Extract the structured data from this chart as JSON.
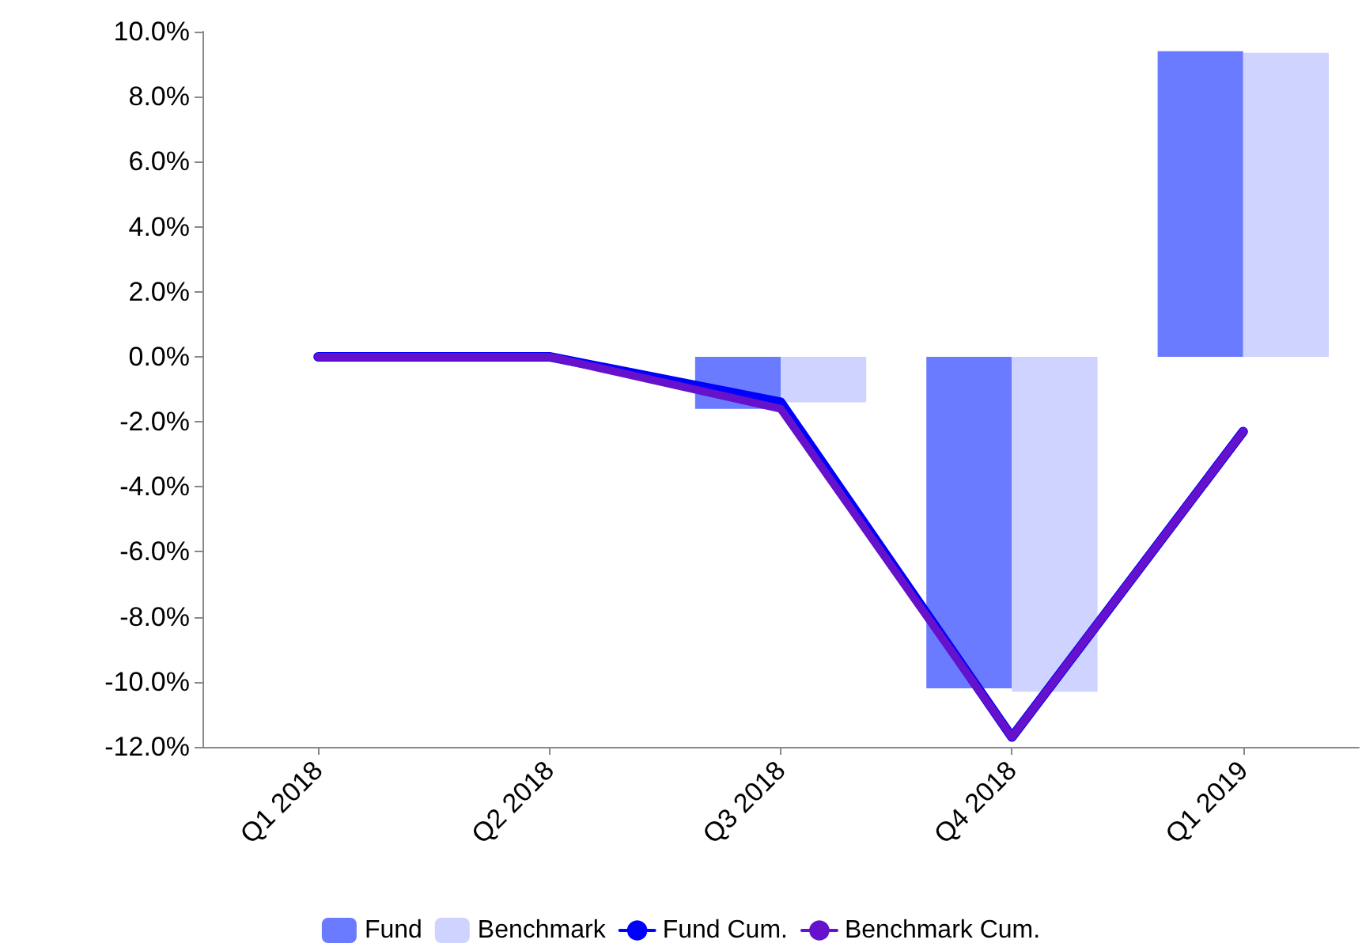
{
  "chart_data": {
    "type": "bar",
    "categories": [
      "Q1 2018",
      "Q2 2018",
      "Q3 2018",
      "Q4 2018",
      "Q1 2019"
    ],
    "series": [
      {
        "name": "Fund",
        "color": "#6b7bff",
        "values": [
          0,
          0,
          -1.6,
          -10.2,
          9.4
        ]
      },
      {
        "name": "Benchmark",
        "color": "#ced3ff",
        "values": [
          0,
          0,
          -1.4,
          -10.3,
          9.35
        ]
      },
      {
        "name": "Fund Cum.",
        "type": "line",
        "color": "#0000ff",
        "values": [
          0,
          0,
          -1.4,
          -11.7,
          -2.3
        ]
      },
      {
        "name": "Benchmark Cum.",
        "type": "line",
        "color": "#6611cc",
        "values": [
          0,
          0,
          -1.6,
          -11.7,
          -2.3
        ]
      }
    ],
    "ylim": [
      -12,
      10
    ],
    "yticks": [
      {
        "value": -12,
        "label": "-12.0%"
      },
      {
        "value": -10,
        "label": "-10.0%"
      },
      {
        "value": -8,
        "label": "-8.0%"
      },
      {
        "value": -6,
        "label": "-6.0%"
      },
      {
        "value": -4,
        "label": "-4.0%"
      },
      {
        "value": -2,
        "label": "-2.0%"
      },
      {
        "value": 0,
        "label": "0.0%"
      },
      {
        "value": 2,
        "label": "2.0%"
      },
      {
        "value": 4,
        "label": "4.0%"
      },
      {
        "value": 6,
        "label": "6.0%"
      },
      {
        "value": 8,
        "label": "8.0%"
      },
      {
        "value": 10,
        "label": "10.0%"
      }
    ],
    "grid": false,
    "legend": "bottom",
    "marker": "none",
    "line_style": "solid"
  }
}
